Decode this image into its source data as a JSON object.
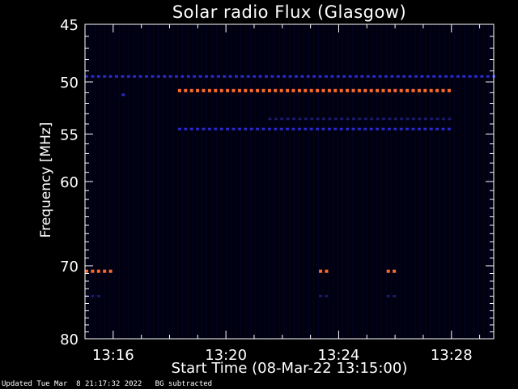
{
  "chart_data": {
    "type": "heatmap",
    "title": "Solar radio Flux (Glasgow)",
    "xlabel": "Start Time (08-Mar-22 13:15:00)",
    "ylabel": "Frequency [MHz]",
    "x_ticks": [
      "13:16",
      "13:20",
      "13:24",
      "13:28"
    ],
    "x_tick_minutes": [
      1,
      5,
      9,
      13
    ],
    "xlim_minutes": [
      0,
      14.5
    ],
    "y_ticks": [
      45,
      50,
      55,
      60,
      70,
      80
    ],
    "ylim": [
      45,
      80
    ],
    "y_scale": "log",
    "bands": [
      {
        "freq": 49.5,
        "start_min": 0.0,
        "end_min": 14.5,
        "level": "low"
      },
      {
        "freq": 50.8,
        "start_min": 3.3,
        "end_min": 13.0,
        "level": "high"
      },
      {
        "freq": 54.5,
        "start_min": 3.3,
        "end_min": 13.0,
        "level": "low"
      },
      {
        "freq": 53.5,
        "start_min": 6.5,
        "end_min": 13.0,
        "level": "faint"
      },
      {
        "freq": 51.2,
        "start_min": 1.3,
        "end_min": 1.4,
        "level": "low"
      },
      {
        "freq": 70.7,
        "start_min": 0.0,
        "end_min": 0.9,
        "level": "high"
      },
      {
        "freq": 70.7,
        "start_min": 8.3,
        "end_min": 8.6,
        "level": "high"
      },
      {
        "freq": 70.7,
        "start_min": 10.7,
        "end_min": 11.0,
        "level": "high"
      },
      {
        "freq": 74.0,
        "start_min": 0.0,
        "end_min": 0.6,
        "level": "faint"
      },
      {
        "freq": 74.0,
        "start_min": 8.3,
        "end_min": 8.6,
        "level": "faint"
      },
      {
        "freq": 74.0,
        "start_min": 10.7,
        "end_min": 11.0,
        "level": "faint"
      }
    ],
    "colors": {
      "background": "#000010",
      "low": "#2a2acc",
      "faint": "#1a1a66",
      "high": "#ff6a2a",
      "axis": "#ffffff"
    }
  },
  "footer": {
    "updated": "Updated Tue Mar  8 21:17:32 2022",
    "note": "BG subtracted"
  }
}
